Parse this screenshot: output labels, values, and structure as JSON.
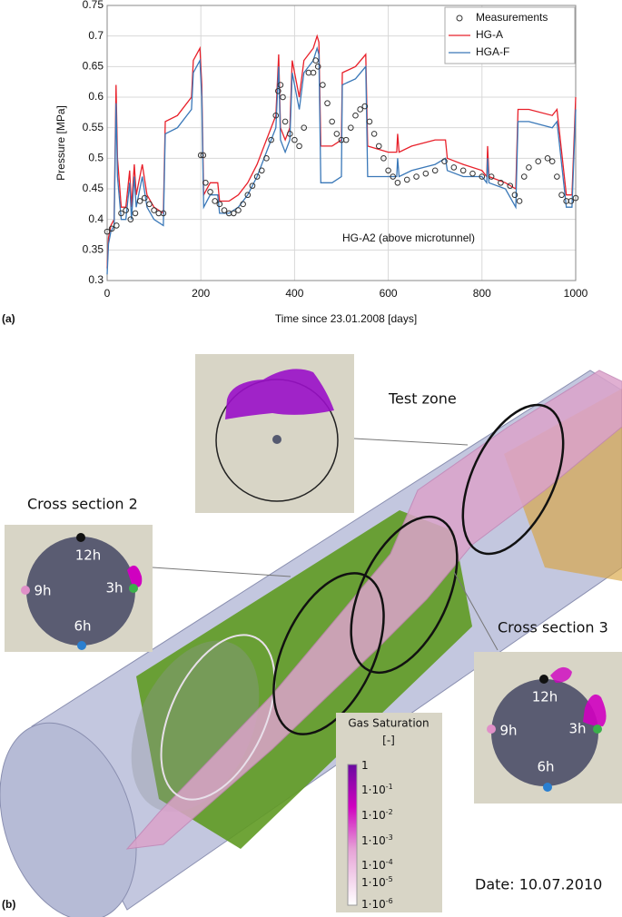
{
  "chart_data": {
    "type": "line",
    "xlabel": "Time since 23.01.2008 [days]",
    "ylabel": "Pressure [MPa]",
    "annotation": "HG-A2 (above microtunnel)",
    "xlim": [
      0,
      1000
    ],
    "xticks": [
      0,
      200,
      400,
      600,
      800,
      1000
    ],
    "ylim": [
      0.3,
      0.75
    ],
    "yticks": [
      0.3,
      0.35,
      0.4,
      0.45,
      0.5,
      0.55,
      0.6,
      0.65,
      0.7,
      0.75
    ],
    "grid": true,
    "legend": "top-right",
    "series": [
      {
        "name": "Measurements",
        "color": "#333333",
        "mode": "markers",
        "x": [
          0,
          10,
          20,
          30,
          40,
          50,
          60,
          70,
          80,
          90,
          100,
          110,
          120,
          200,
          205,
          210,
          220,
          230,
          240,
          250,
          260,
          270,
          280,
          290,
          300,
          310,
          320,
          330,
          340,
          350,
          360,
          365,
          370,
          375,
          380,
          390,
          400,
          410,
          420,
          430,
          440,
          445,
          450,
          460,
          470,
          480,
          490,
          500,
          510,
          520,
          530,
          540,
          550,
          560,
          570,
          580,
          590,
          600,
          610,
          620,
          640,
          660,
          680,
          700,
          720,
          740,
          760,
          780,
          800,
          820,
          840,
          860,
          870,
          880,
          890,
          900,
          920,
          940,
          950,
          960,
          970,
          980,
          990,
          1000
        ],
        "values": [
          0.38,
          0.385,
          0.39,
          0.41,
          0.415,
          0.4,
          0.41,
          0.43,
          0.435,
          0.425,
          0.415,
          0.41,
          0.41,
          0.505,
          0.505,
          0.46,
          0.445,
          0.43,
          0.425,
          0.415,
          0.41,
          0.41,
          0.415,
          0.425,
          0.44,
          0.455,
          0.47,
          0.48,
          0.5,
          0.53,
          0.57,
          0.61,
          0.62,
          0.6,
          0.56,
          0.54,
          0.53,
          0.52,
          0.55,
          0.64,
          0.64,
          0.66,
          0.65,
          0.62,
          0.59,
          0.56,
          0.54,
          0.53,
          0.53,
          0.55,
          0.57,
          0.58,
          0.585,
          0.56,
          0.54,
          0.52,
          0.5,
          0.48,
          0.47,
          0.46,
          0.465,
          0.47,
          0.475,
          0.48,
          0.495,
          0.485,
          0.48,
          0.475,
          0.47,
          0.47,
          0.46,
          0.455,
          0.44,
          0.43,
          0.47,
          0.485,
          0.495,
          0.5,
          0.495,
          0.47,
          0.44,
          0.43,
          0.43,
          0.435
        ]
      },
      {
        "name": "HG-A",
        "color": "#e8202a",
        "mode": "lines",
        "x": [
          0,
          3,
          8,
          15,
          19,
          22,
          30,
          40,
          48,
          52,
          58,
          62,
          75,
          85,
          100,
          120,
          124,
          150,
          180,
          184,
          198,
          202,
          206,
          220,
          236,
          240,
          260,
          280,
          300,
          320,
          340,
          360,
          366,
          370,
          380,
          390,
          395,
          410,
          420,
          440,
          448,
          452,
          456,
          480,
          500,
          502,
          530,
          552,
          556,
          600,
          618,
          620,
          623,
          650,
          700,
          722,
          726,
          760,
          800,
          810,
          812,
          815,
          850,
          872,
          877,
          900,
          950,
          960,
          980,
          992,
          1000
        ],
        "values": [
          0.32,
          0.37,
          0.39,
          0.4,
          0.62,
          0.5,
          0.42,
          0.42,
          0.48,
          0.42,
          0.49,
          0.44,
          0.49,
          0.44,
          0.42,
          0.41,
          0.56,
          0.57,
          0.6,
          0.66,
          0.68,
          0.62,
          0.44,
          0.46,
          0.46,
          0.43,
          0.43,
          0.44,
          0.46,
          0.49,
          0.53,
          0.57,
          0.67,
          0.55,
          0.53,
          0.55,
          0.66,
          0.6,
          0.66,
          0.68,
          0.7,
          0.69,
          0.52,
          0.52,
          0.53,
          0.64,
          0.65,
          0.67,
          0.52,
          0.51,
          0.51,
          0.54,
          0.51,
          0.52,
          0.53,
          0.53,
          0.5,
          0.49,
          0.48,
          0.47,
          0.52,
          0.47,
          0.46,
          0.45,
          0.58,
          0.58,
          0.57,
          0.58,
          0.44,
          0.44,
          0.6
        ]
      },
      {
        "name": "HGA-F",
        "color": "#3a78b8",
        "mode": "lines",
        "x": [
          0,
          3,
          8,
          15,
          19,
          22,
          30,
          40,
          48,
          52,
          58,
          62,
          75,
          85,
          100,
          120,
          124,
          150,
          180,
          184,
          198,
          202,
          206,
          220,
          236,
          240,
          260,
          280,
          300,
          320,
          340,
          360,
          366,
          370,
          380,
          390,
          395,
          410,
          420,
          440,
          448,
          452,
          456,
          480,
          500,
          502,
          530,
          552,
          556,
          600,
          618,
          620,
          623,
          650,
          700,
          722,
          726,
          760,
          800,
          810,
          812,
          815,
          850,
          872,
          877,
          900,
          950,
          960,
          980,
          992,
          1000
        ],
        "values": [
          0.31,
          0.36,
          0.38,
          0.39,
          0.59,
          0.47,
          0.4,
          0.4,
          0.46,
          0.4,
          0.47,
          0.42,
          0.47,
          0.42,
          0.4,
          0.39,
          0.54,
          0.55,
          0.58,
          0.64,
          0.66,
          0.6,
          0.42,
          0.44,
          0.44,
          0.41,
          0.41,
          0.42,
          0.44,
          0.47,
          0.51,
          0.55,
          0.65,
          0.53,
          0.51,
          0.53,
          0.64,
          0.58,
          0.64,
          0.66,
          0.68,
          0.67,
          0.46,
          0.46,
          0.47,
          0.62,
          0.63,
          0.65,
          0.47,
          0.47,
          0.47,
          0.5,
          0.47,
          0.48,
          0.49,
          0.5,
          0.48,
          0.47,
          0.47,
          0.46,
          0.5,
          0.46,
          0.45,
          0.42,
          0.56,
          0.56,
          0.55,
          0.56,
          0.42,
          0.42,
          0.58
        ]
      }
    ]
  },
  "figure": {
    "panel_a_label": "(a)",
    "panel_b_label": "(b)",
    "test_zone": {
      "title": "Test zone"
    },
    "cross_section_2": {
      "title": "Cross section 2",
      "clock": [
        "12h",
        "3h",
        "6h",
        "9h"
      ]
    },
    "cross_section_3": {
      "title": "Cross section 3",
      "clock": [
        "12h",
        "3h",
        "6h",
        "9h"
      ]
    },
    "colorbar": {
      "title": "Gas Saturation",
      "unit": "[-]",
      "labels": [
        {
          "base": "1"
        },
        {
          "base": "1·10",
          "exponent": "-1"
        },
        {
          "base": "1·10",
          "exponent": "-2"
        },
        {
          "base": "1·10",
          "exponent": "-3"
        },
        {
          "base": "1·10",
          "exponent": "-4"
        },
        {
          "base": "1·10",
          "exponent": "-5"
        },
        {
          "base": "1·10",
          "exponent": "-6"
        }
      ]
    },
    "date": "Date: 10.07.2010"
  }
}
